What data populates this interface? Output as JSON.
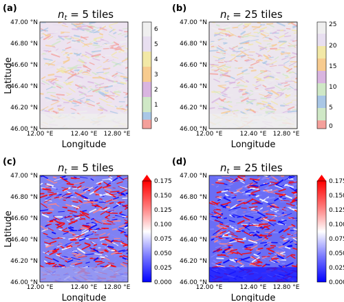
{
  "figure": {
    "common": {
      "xlabel": "Longitude",
      "ylabel": "Latitude",
      "xticks": [
        "12.00 °E",
        "12.40 °E",
        "12.80 °E"
      ],
      "yticks": [
        "47.00 °N",
        "46.80 °N",
        "46.60 °N",
        "46.40 °N",
        "46.20 °N",
        "46.00 °N"
      ]
    },
    "panels": [
      {
        "label": "(a)",
        "title_prefix": "n",
        "title_sub": "t",
        "title_suffix": " = 5 tiles",
        "map_style": "categorical",
        "colorbar": {
          "ticks": [
            "6",
            "5",
            "4",
            "3",
            "2",
            "1",
            "0"
          ],
          "colors": [
            "#f4a09b",
            "#a9c7e6",
            "#cfe8c6",
            "#d9b5e0",
            "#f7cb8f",
            "#f2e8a6",
            "#e8dff0",
            "#efefef"
          ]
        }
      },
      {
        "label": "(b)",
        "title_prefix": "n",
        "title_sub": "t",
        "title_suffix": " = 25 tiles",
        "map_style": "categorical",
        "colorbar": {
          "ticks": [
            "25",
            "20",
            "15",
            "10",
            "5",
            "0"
          ],
          "colors": [
            "#f4a09b",
            "#a9c7e6",
            "#cfe8c6",
            "#d9b5e0",
            "#f7cb8f",
            "#f2e8a6",
            "#e8dff0",
            "#efefef"
          ]
        }
      },
      {
        "label": "(c)",
        "title_prefix": "n",
        "title_sub": "t",
        "title_suffix": " = 5 tiles",
        "map_style": "continuous",
        "colorbar": {
          "ticks": [
            "0.175",
            "0.150",
            "0.125",
            "0.100",
            "0.075",
            "0.050",
            "0.025",
            "0.000"
          ],
          "colormap": [
            "#0000ff",
            "#8585ff",
            "#ffffff",
            "#ff8585",
            "#ff0000"
          ]
        }
      },
      {
        "label": "(d)",
        "title_prefix": "n",
        "title_sub": "t",
        "title_suffix": " = 25 tiles",
        "map_style": "continuous",
        "colorbar": {
          "ticks": [
            "0.175",
            "0.150",
            "0.125",
            "0.100",
            "0.075",
            "0.050",
            "0.025",
            "0.000"
          ],
          "colormap": [
            "#0000ff",
            "#8585ff",
            "#ffffff",
            "#ff8585",
            "#ff0000"
          ]
        }
      }
    ]
  }
}
